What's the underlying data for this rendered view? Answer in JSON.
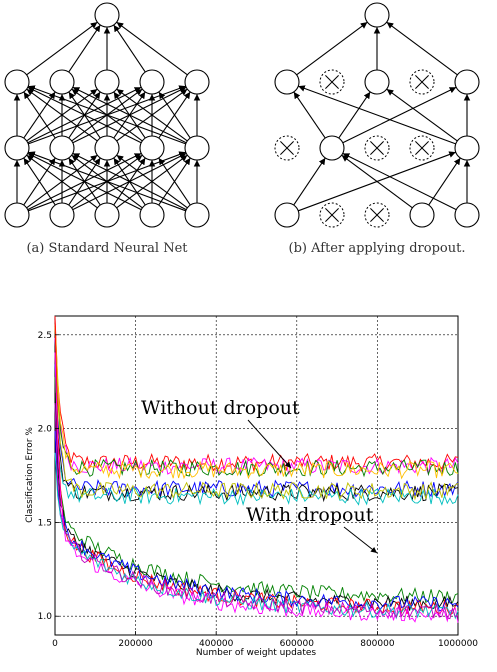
{
  "diagram": {
    "caption_a": "(a) Standard Neural Net",
    "caption_b": "(b) After applying dropout."
  },
  "chart_data": {
    "type": "line",
    "title": "",
    "xlabel": "Number of weight updates",
    "ylabel": "Classification Error %",
    "xlim": [
      0,
      1000000
    ],
    "ylim": [
      0.9,
      2.6
    ],
    "x_ticks": [
      "0",
      "200000",
      "400000",
      "600000",
      "800000",
      "1000000"
    ],
    "y_ticks": [
      "1.0",
      "1.5",
      "2.0",
      "2.5"
    ],
    "grid": true,
    "annotations": [
      {
        "text": "Without dropout",
        "x": 600000,
        "y": 1.73
      },
      {
        "text": "With dropout",
        "x": 800000,
        "y": 1.2
      }
    ],
    "series": [
      {
        "group": "without",
        "color": "#ff0000",
        "start": 2.6,
        "final": 1.82
      },
      {
        "group": "without",
        "color": "#ff00ff",
        "start": 2.5,
        "final": 1.8
      },
      {
        "group": "without",
        "color": "#008000",
        "start": 2.4,
        "final": 1.79
      },
      {
        "group": "without",
        "color": "#ffbf00",
        "start": 2.6,
        "final": 1.78
      },
      {
        "group": "without",
        "color": "#0000ff",
        "start": 2.3,
        "final": 1.68
      },
      {
        "group": "without",
        "color": "#000000",
        "start": 2.2,
        "final": 1.66
      },
      {
        "group": "without",
        "color": "#00bfbf",
        "start": 2.1,
        "final": 1.64
      },
      {
        "group": "without",
        "color": "#bfbf00",
        "start": 2.5,
        "final": 1.67
      },
      {
        "group": "with",
        "color": "#008000",
        "start": 2.3,
        "final": 1.1
      },
      {
        "group": "with",
        "color": "#000000",
        "start": 2.2,
        "final": 1.06
      },
      {
        "group": "with",
        "color": "#ff0000",
        "start": 2.6,
        "final": 1.04
      },
      {
        "group": "with",
        "color": "#0000ff",
        "start": 2.0,
        "final": 1.06
      },
      {
        "group": "with",
        "color": "#ff00ff",
        "start": 2.4,
        "final": 1.0
      },
      {
        "group": "with",
        "color": "#00bfbf",
        "start": 1.9,
        "final": 1.02
      },
      {
        "group": "with",
        "color": "#bf00bf",
        "start": 2.1,
        "final": 1.02
      }
    ]
  }
}
